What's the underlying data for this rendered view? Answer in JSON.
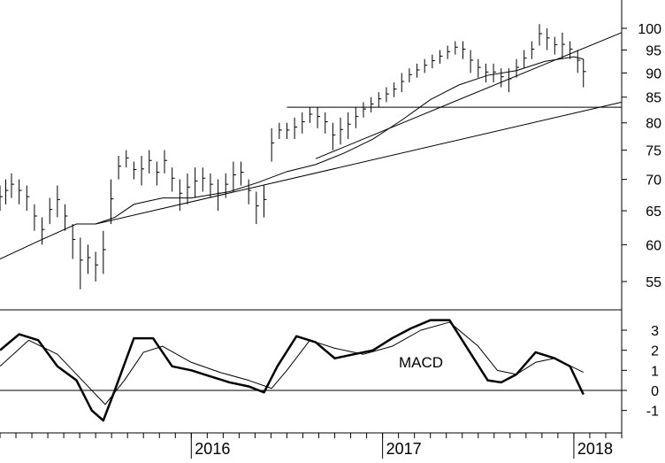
{
  "chart_data": [
    {
      "type": "ohlc",
      "title": "",
      "xlabel": "",
      "ylabel": "",
      "scale": "log",
      "ylim": [
        50,
        107
      ],
      "y_tick_labels": [
        "55",
        "60",
        "65",
        "70",
        "75",
        "80",
        "85",
        "90",
        "95",
        "100"
      ],
      "bars": [
        {
          "x": 2015.0,
          "low": 65,
          "high": 69
        },
        {
          "x": 2015.03,
          "low": 66,
          "high": 70
        },
        {
          "x": 2015.06,
          "low": 67,
          "high": 71
        },
        {
          "x": 2015.1,
          "low": 66,
          "high": 70
        },
        {
          "x": 2015.14,
          "low": 65,
          "high": 69
        },
        {
          "x": 2015.18,
          "low": 62,
          "high": 66
        },
        {
          "x": 2015.22,
          "low": 60,
          "high": 64
        },
        {
          "x": 2015.26,
          "low": 63,
          "high": 67
        },
        {
          "x": 2015.3,
          "low": 64,
          "high": 69
        },
        {
          "x": 2015.34,
          "low": 62,
          "high": 66
        },
        {
          "x": 2015.38,
          "low": 58,
          "high": 63
        },
        {
          "x": 2015.42,
          "low": 54,
          "high": 61
        },
        {
          "x": 2015.46,
          "low": 56,
          "high": 60
        },
        {
          "x": 2015.5,
          "low": 55,
          "high": 59
        },
        {
          "x": 2015.54,
          "low": 56,
          "high": 62
        },
        {
          "x": 2015.58,
          "low": 63,
          "high": 70
        },
        {
          "x": 2015.62,
          "low": 70,
          "high": 74
        },
        {
          "x": 2015.66,
          "low": 72,
          "high": 75
        },
        {
          "x": 2015.7,
          "low": 70,
          "high": 73
        },
        {
          "x": 2015.74,
          "low": 69,
          "high": 74
        },
        {
          "x": 2015.78,
          "low": 71,
          "high": 75
        },
        {
          "x": 2015.82,
          "low": 69,
          "high": 73
        },
        {
          "x": 2015.86,
          "low": 71,
          "high": 75
        },
        {
          "x": 2015.9,
          "low": 68,
          "high": 72
        },
        {
          "x": 2015.94,
          "low": 65,
          "high": 70
        },
        {
          "x": 2015.98,
          "low": 66,
          "high": 71
        },
        {
          "x": 2016.02,
          "low": 67,
          "high": 72
        },
        {
          "x": 2016.06,
          "low": 68,
          "high": 72
        },
        {
          "x": 2016.1,
          "low": 67,
          "high": 71
        },
        {
          "x": 2016.14,
          "low": 65,
          "high": 70
        },
        {
          "x": 2016.18,
          "low": 67,
          "high": 71
        },
        {
          "x": 2016.22,
          "low": 68,
          "high": 73
        },
        {
          "x": 2016.26,
          "low": 69,
          "high": 73
        },
        {
          "x": 2016.3,
          "low": 66,
          "high": 70
        },
        {
          "x": 2016.34,
          "low": 63,
          "high": 68
        },
        {
          "x": 2016.38,
          "low": 64,
          "high": 69
        },
        {
          "x": 2016.42,
          "low": 73,
          "high": 79
        },
        {
          "x": 2016.46,
          "low": 77,
          "high": 80
        },
        {
          "x": 2016.5,
          "low": 77,
          "high": 80
        },
        {
          "x": 2016.54,
          "low": 77,
          "high": 81
        },
        {
          "x": 2016.58,
          "low": 78,
          "high": 82
        },
        {
          "x": 2016.62,
          "low": 80,
          "high": 83
        },
        {
          "x": 2016.66,
          "low": 79,
          "high": 83
        },
        {
          "x": 2016.7,
          "low": 78,
          "high": 82
        },
        {
          "x": 2016.74,
          "low": 75,
          "high": 80
        },
        {
          "x": 2016.78,
          "low": 76,
          "high": 81
        },
        {
          "x": 2016.82,
          "low": 77,
          "high": 82
        },
        {
          "x": 2016.86,
          "low": 79,
          "high": 83
        },
        {
          "x": 2016.9,
          "low": 81,
          "high": 84
        },
        {
          "x": 2016.94,
          "low": 82,
          "high": 85
        },
        {
          "x": 2016.98,
          "low": 83,
          "high": 86
        },
        {
          "x": 2017.02,
          "low": 84,
          "high": 87
        },
        {
          "x": 2017.06,
          "low": 85,
          "high": 88
        },
        {
          "x": 2017.1,
          "low": 86,
          "high": 90
        },
        {
          "x": 2017.14,
          "low": 88,
          "high": 91
        },
        {
          "x": 2017.18,
          "low": 89,
          "high": 92
        },
        {
          "x": 2017.22,
          "low": 90,
          "high": 93
        },
        {
          "x": 2017.26,
          "low": 91,
          "high": 94
        },
        {
          "x": 2017.3,
          "low": 92,
          "high": 95
        },
        {
          "x": 2017.34,
          "low": 93,
          "high": 96
        },
        {
          "x": 2017.38,
          "low": 94,
          "high": 97
        },
        {
          "x": 2017.42,
          "low": 93,
          "high": 97
        },
        {
          "x": 2017.46,
          "low": 90,
          "high": 95
        },
        {
          "x": 2017.5,
          "low": 89,
          "high": 93
        },
        {
          "x": 2017.54,
          "low": 88,
          "high": 92
        },
        {
          "x": 2017.58,
          "low": 88,
          "high": 92
        },
        {
          "x": 2017.62,
          "low": 87,
          "high": 91
        },
        {
          "x": 2017.66,
          "low": 86,
          "high": 91
        },
        {
          "x": 2017.7,
          "low": 89,
          "high": 93
        },
        {
          "x": 2017.74,
          "low": 91,
          "high": 95
        },
        {
          "x": 2017.78,
          "low": 93,
          "high": 97
        },
        {
          "x": 2017.82,
          "low": 96,
          "high": 101
        },
        {
          "x": 2017.86,
          "low": 95,
          "high": 100
        },
        {
          "x": 2017.9,
          "low": 94,
          "high": 98
        },
        {
          "x": 2017.94,
          "low": 93,
          "high": 99
        },
        {
          "x": 2017.98,
          "low": 93,
          "high": 97
        },
        {
          "x": 2018.02,
          "low": 90,
          "high": 95
        },
        {
          "x": 2018.05,
          "low": 87,
          "high": 93
        }
      ],
      "moving_average": [
        {
          "x": 2015.0,
          "y": 58
        },
        {
          "x": 2015.2,
          "y": 60.5
        },
        {
          "x": 2015.4,
          "y": 63
        },
        {
          "x": 2015.5,
          "y": 63
        },
        {
          "x": 2015.6,
          "y": 64
        },
        {
          "x": 2015.7,
          "y": 66
        },
        {
          "x": 2015.85,
          "y": 67
        },
        {
          "x": 2016.0,
          "y": 67
        },
        {
          "x": 2016.2,
          "y": 68
        },
        {
          "x": 2016.35,
          "y": 69.5
        },
        {
          "x": 2016.5,
          "y": 71.3
        },
        {
          "x": 2016.65,
          "y": 72.5
        },
        {
          "x": 2016.8,
          "y": 74.5
        },
        {
          "x": 2016.95,
          "y": 77
        },
        {
          "x": 2017.1,
          "y": 80.5
        },
        {
          "x": 2017.25,
          "y": 84.5
        },
        {
          "x": 2017.4,
          "y": 87.5
        },
        {
          "x": 2017.55,
          "y": 89.5
        },
        {
          "x": 2017.7,
          "y": 90.5
        },
        {
          "x": 2017.85,
          "y": 92.5
        },
        {
          "x": 2018.0,
          "y": 93.5
        },
        {
          "x": 2018.05,
          "y": 93
        }
      ],
      "trendlines": [
        {
          "x": [
            2016.5,
            2018.25
          ],
          "y": [
            83,
            83
          ]
        },
        {
          "x": [
            2016.65,
            2018.25
          ],
          "y": [
            73.5,
            99
          ]
        },
        {
          "x": [
            2015.5,
            2018.25
          ],
          "y": [
            63,
            84
          ]
        }
      ]
    },
    {
      "type": "line",
      "title": "",
      "xlabel": "",
      "ylabel": "",
      "ylim": [
        -2,
        4
      ],
      "y_tick_labels": [
        "-1",
        "0",
        "1",
        "2",
        "3"
      ],
      "x_tick_labels": [
        {
          "x": 2016.0,
          "label": "2016"
        },
        {
          "x": 2017.0,
          "label": "2017"
        },
        {
          "x": 2018.0,
          "label": "2018"
        }
      ],
      "annotation": "MACD",
      "series": [
        {
          "style": "thick",
          "points": [
            {
              "x": 2015.0,
              "y": 2.0
            },
            {
              "x": 2015.1,
              "y": 2.8
            },
            {
              "x": 2015.2,
              "y": 2.5
            },
            {
              "x": 2015.3,
              "y": 1.2
            },
            {
              "x": 2015.4,
              "y": 0.5
            },
            {
              "x": 2015.48,
              "y": -1.0
            },
            {
              "x": 2015.54,
              "y": -1.5
            },
            {
              "x": 2015.6,
              "y": 0.0
            },
            {
              "x": 2015.7,
              "y": 2.6
            },
            {
              "x": 2015.8,
              "y": 2.6
            },
            {
              "x": 2015.9,
              "y": 1.2
            },
            {
              "x": 2016.0,
              "y": 1.0
            },
            {
              "x": 2016.1,
              "y": 0.7
            },
            {
              "x": 2016.2,
              "y": 0.4
            },
            {
              "x": 2016.3,
              "y": 0.2
            },
            {
              "x": 2016.38,
              "y": -0.1
            },
            {
              "x": 2016.45,
              "y": 1.2
            },
            {
              "x": 2016.55,
              "y": 2.7
            },
            {
              "x": 2016.65,
              "y": 2.4
            },
            {
              "x": 2016.75,
              "y": 1.6
            },
            {
              "x": 2016.85,
              "y": 1.8
            },
            {
              "x": 2016.95,
              "y": 2.0
            },
            {
              "x": 2017.05,
              "y": 2.6
            },
            {
              "x": 2017.15,
              "y": 3.1
            },
            {
              "x": 2017.25,
              "y": 3.5
            },
            {
              "x": 2017.35,
              "y": 3.5
            },
            {
              "x": 2017.45,
              "y": 2.0
            },
            {
              "x": 2017.55,
              "y": 0.5
            },
            {
              "x": 2017.62,
              "y": 0.4
            },
            {
              "x": 2017.7,
              "y": 0.8
            },
            {
              "x": 2017.8,
              "y": 1.9
            },
            {
              "x": 2017.9,
              "y": 1.6
            },
            {
              "x": 2017.98,
              "y": 1.2
            },
            {
              "x": 2018.05,
              "y": -0.2
            }
          ]
        },
        {
          "style": "thin",
          "points": [
            {
              "x": 2015.0,
              "y": 1.2
            },
            {
              "x": 2015.15,
              "y": 2.5
            },
            {
              "x": 2015.3,
              "y": 1.8
            },
            {
              "x": 2015.45,
              "y": 0.3
            },
            {
              "x": 2015.55,
              "y": -0.7
            },
            {
              "x": 2015.65,
              "y": 0.5
            },
            {
              "x": 2015.75,
              "y": 1.9
            },
            {
              "x": 2015.85,
              "y": 2.2
            },
            {
              "x": 2016.0,
              "y": 1.4
            },
            {
              "x": 2016.15,
              "y": 0.9
            },
            {
              "x": 2016.3,
              "y": 0.5
            },
            {
              "x": 2016.42,
              "y": 0.1
            },
            {
              "x": 2016.5,
              "y": 1.0
            },
            {
              "x": 2016.62,
              "y": 2.5
            },
            {
              "x": 2016.75,
              "y": 2.1
            },
            {
              "x": 2016.9,
              "y": 1.8
            },
            {
              "x": 2017.05,
              "y": 2.2
            },
            {
              "x": 2017.2,
              "y": 3.0
            },
            {
              "x": 2017.35,
              "y": 3.4
            },
            {
              "x": 2017.5,
              "y": 2.2
            },
            {
              "x": 2017.6,
              "y": 1.0
            },
            {
              "x": 2017.7,
              "y": 0.8
            },
            {
              "x": 2017.8,
              "y": 1.4
            },
            {
              "x": 2017.9,
              "y": 1.6
            },
            {
              "x": 2018.05,
              "y": 0.9
            }
          ]
        }
      ],
      "reference_line": 0
    }
  ]
}
